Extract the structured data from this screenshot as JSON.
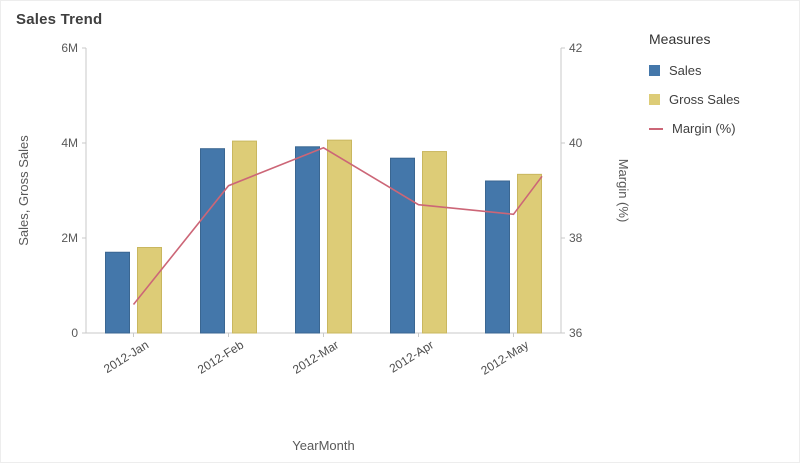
{
  "title": "Sales Trend",
  "legend": {
    "title": "Measures",
    "items": [
      {
        "label": "Sales",
        "color": "#4477aa",
        "type": "bar"
      },
      {
        "label": "Gross Sales",
        "color": "#ddcc77",
        "type": "bar"
      },
      {
        "label": "Margin (%)",
        "color": "#cc6677",
        "type": "line"
      }
    ]
  },
  "chart_data": {
    "type": "combo",
    "categories": [
      "2012-Jan",
      "2012-Feb",
      "2012-Mar",
      "2012-Apr",
      "2012-May"
    ],
    "series": [
      {
        "name": "Sales",
        "type": "bar",
        "axis": "left",
        "color": "#4477aa",
        "stroke": "#3a6691",
        "values": [
          1700000,
          3880000,
          3920000,
          3680000,
          3200000
        ]
      },
      {
        "name": "Gross Sales",
        "type": "bar",
        "axis": "left",
        "color": "#ddcc77",
        "stroke": "#c9b75f",
        "values": [
          1800000,
          4040000,
          4060000,
          3820000,
          3340000
        ]
      },
      {
        "name": "Margin (%)",
        "type": "line",
        "axis": "right",
        "color": "#cc6677",
        "points": [
          {
            "x": 0,
            "value": 36.6
          },
          {
            "x": 1,
            "value": 39.1
          },
          {
            "x": 2,
            "value": 39.9
          },
          {
            "x": 3,
            "value": 38.7
          },
          {
            "x": 4,
            "value": 38.5
          },
          {
            "x": 4.3,
            "value": 39.3
          }
        ]
      }
    ],
    "axes": {
      "left": {
        "title": "Sales, Gross Sales",
        "min": 0,
        "max": 6000000,
        "ticks": [
          "0",
          "2M",
          "4M",
          "6M"
        ],
        "tick_values": [
          0,
          2000000,
          4000000,
          6000000
        ]
      },
      "right": {
        "title": "Margin (%)",
        "min": 36,
        "max": 42,
        "ticks": [
          "36",
          "38",
          "40",
          "42"
        ],
        "tick_values": [
          36,
          38,
          40,
          42
        ]
      },
      "x": {
        "title": "YearMonth"
      }
    },
    "grid": false,
    "legend_position": "right"
  }
}
